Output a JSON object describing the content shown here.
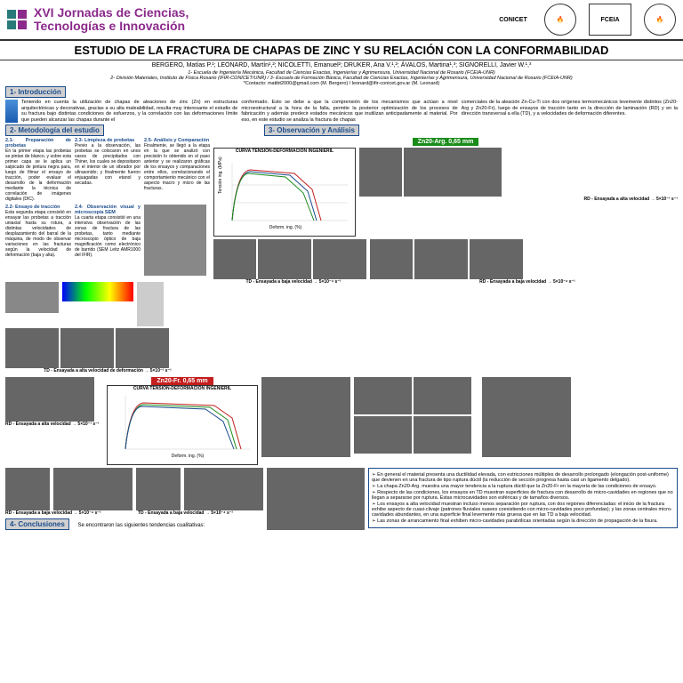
{
  "event": {
    "title_l1": "XVI Jornadas de Ciencias,",
    "title_l2": "Tecnologías e Innovación",
    "logo_colors": [
      "#2a7a7a",
      "#8b2a8b",
      "#2a7a7a",
      "#8b2a8b"
    ]
  },
  "sponsors": [
    "CONICET",
    "IFIR",
    "FCEIA",
    "UNR"
  ],
  "title": "ESTUDIO DE LA FRACTURA DE CHAPAS DE ZINC Y SU RELACIÓN CON LA CONFORMABILIDAD",
  "authors": "BERGERO, Matías P.¹; LEONARD, Martín¹,²; NICOLETTI, Emanuel²; DRUKER, Ana V.¹,²; ÁVALOS, Martina¹,³; SIGNORELLI, Javier W.¹,³",
  "affil1": "1- Escuela de Ingeniería Mecánica, Facultad de Ciencias Exactas, Ingenierías y Agrimensura, Universidad Nacional de Rosario (FCEIA-UNR)",
  "affil2": "2- División Materiales, Instituto de Física Rosario (IFIR-CONICET/UNR) / 3- Escuela de Formación Básica, Facultad de Ciencias Exactas, Ingenierías y Agrimensura, Universidad Nacional de Rosario (FCEIA-UNR)",
  "contact": "*Contacto: matibt2000@gmail.com (M. Bergero) / leonard@ifir-conicet.gov.ar (M. Leonard)",
  "sec1": "1- Introducción",
  "intro_a": "Teniendo en cuenta la utilización de chapas de aleaciones de zinc (Zn) en estructuras arquitectónicas y decorativas, gracias a su alta maleabilidad, resulta muy interesante el estudio de su fractura bajo distintas condiciones de esfuerzos, y la correlación con las deformaciones límite que pueden alcanzar las chapas durante el",
  "intro_b": "conformado. Esto se debe a que la comprensión de los mecanismos que actúan a nivel microestructural a la hora de la falla, permite la posterior optimización de los procesos de fabricación y además predecir estados mecánicos que inutilizan anticipadamente al material. Por eso, en este estudio se analiza la fractura de chapas",
  "intro_c": "comerciales de la aleación Zn-Cu-Ti con dos orígenes termomecánicos levemente distintos (Zn20-Arg y Zn20-Fr), luego de ensayos de tracción tanto en la dirección de laminación (RD) y en la dirección transversal a ella (TD), y a velocidades de deformación diferentes.",
  "sec2": "2- Metodología del estudio",
  "sec3": "3- Observación y Análisis",
  "m21_t": "2.1- Preparación de probetas",
  "m21": "En la primer etapa las probetas se pintan de blanco, y sobre esta primer capa se le aplica un salpicado de pintura negra para, luego de filmar el ensayo de tracción, poder evaluar el desarrollo de la deformación mediante la técnica de correlación de imágenes digitales (DIC).",
  "m22_t": "2.2- Ensayo de tracción",
  "m22": "Esta segunda etapa consistió en ensayar las probetas a tracción uniaxial hasta su rotura, a distintas velocidades de desplazamiento del barral de la máquina, de modo de observar variaciones en las fracturas según la velocidad de deformación (baja y alta).",
  "m23_t": "2.3- Limpieza de probetas",
  "m23": "Previo a la observación, las probetas se colocaron en unos vasos de precipitados con Thiner, los cuales se depositaron en el interior de un vibrador por ultrasonido; y finalmente fueron enjuagadas con etanol y secadas.",
  "m24_t": "2.4- Observación visual y microscopía SEM",
  "m24": "La cuarta etapa consistió en una intensiva observación de las zonas de fractura de las probetas, tanto mediante microscopio óptico de baja magnificación como electrónico de barrido (SEM Leitz AMR1000 del IFIR).",
  "m25_t": "2.5- Análisis y Comparación",
  "m25": "Finalmente, se llegó a la etapa en la que se analizó con precisión lo obtenido en el paso anterior y se realizaron gráficas de los ensayos y comparaciones entre ellos, correlacionando el comportamiento mecánico con el aspecto macro y micro de las fracturas.",
  "zn1": "Zn20-Arg. 0,65 mm",
  "zn2": "Zn20-Fr. 0,65 mm",
  "chart1_title": "CURVA TENSIÓN-DEFORMACIÓN INGENIERIL",
  "chart1": {
    "series": [
      "EDML-00-01",
      "EDML-00-02",
      "EDML-00-03",
      "EDML-00-05"
    ],
    "colors": [
      "#c41e1e",
      "#1a4b8c",
      "#1a8c1a",
      "#8b5a2b"
    ],
    "xlabel": "Deform. ing. (%)",
    "ylabel": "Tensión ing. (MPa)",
    "xlim": [
      0,
      50
    ],
    "ylim": [
      0,
      200
    ]
  },
  "chart2": {
    "series": [
      "SUB-00-01",
      "SUB-00-02",
      "SUB-00-03",
      "SUB-00-04"
    ],
    "colors": [
      "#c41e1e",
      "#1a8c1a",
      "#1a4b8c",
      "#8b5a2b"
    ],
    "xlabel": "Deform. ing. (%)",
    "ylabel": "Tensión ing. (MPa)",
    "xlim": [
      0,
      70
    ],
    "ylim": [
      0,
      200
    ]
  },
  "cap_rd_hi": "RD - Ensayada a alta velocidad → 5×10⁻¹ s⁻¹",
  "cap_rd_lo": "RD - Ensayada a baja velocidad → 5×10⁻⁴ s⁻¹",
  "cap_td_hi": "TD - Ensayada a alta velocidad de deformación → 5×10⁻¹ s⁻¹",
  "cap_td_lo": "TD - Ensayada a baja velocidad → 5×10⁻⁴ s⁻¹",
  "sec4": "4- Conclusiones",
  "concl_intro": "Se encontraron las siguientes tendencias cualitativas:",
  "concl": [
    "En general el material presenta una ductilidad elevada, con estricciones múltiples de desarrollo prolongado (elongación post-uniforme) que devienen en una fractura de tipo ruptura dúctil (la reducción de sección progresa hasta casi un ligamento delgado).",
    "La chapa Zn20-Arg. muestra una mayor tendencia a la ruptura dúctil que la Zn20-Fr en la mayoría de las condiciones de ensayo.",
    "Respecto de las condiciones, los ensayos en TD muestran superficies de fractura con desarrollo de micro-cavidades en regiones que no llegan a separarse por ruptura. Estas microcavidades son esféricas y de tamaños diversos.",
    "Los ensayos a alta velocidad muestran incluso menos separación por ruptura, con dos regiones diferenciadas: el inicio de la fractura exhibe aspecto de cuasi-clivaje (patrones fluviales suaves coexistiendo con micro-cavidades poco profundas); y las zonas centrales micro-cavidades abundantes, en una superficie final levemente más gruesa que en las TD a baja velocidad.",
    "Las zonas de arrancamiento final exhiben micro-cavidades parabólicas orientadas según la dirección de propagación de la fisura."
  ]
}
